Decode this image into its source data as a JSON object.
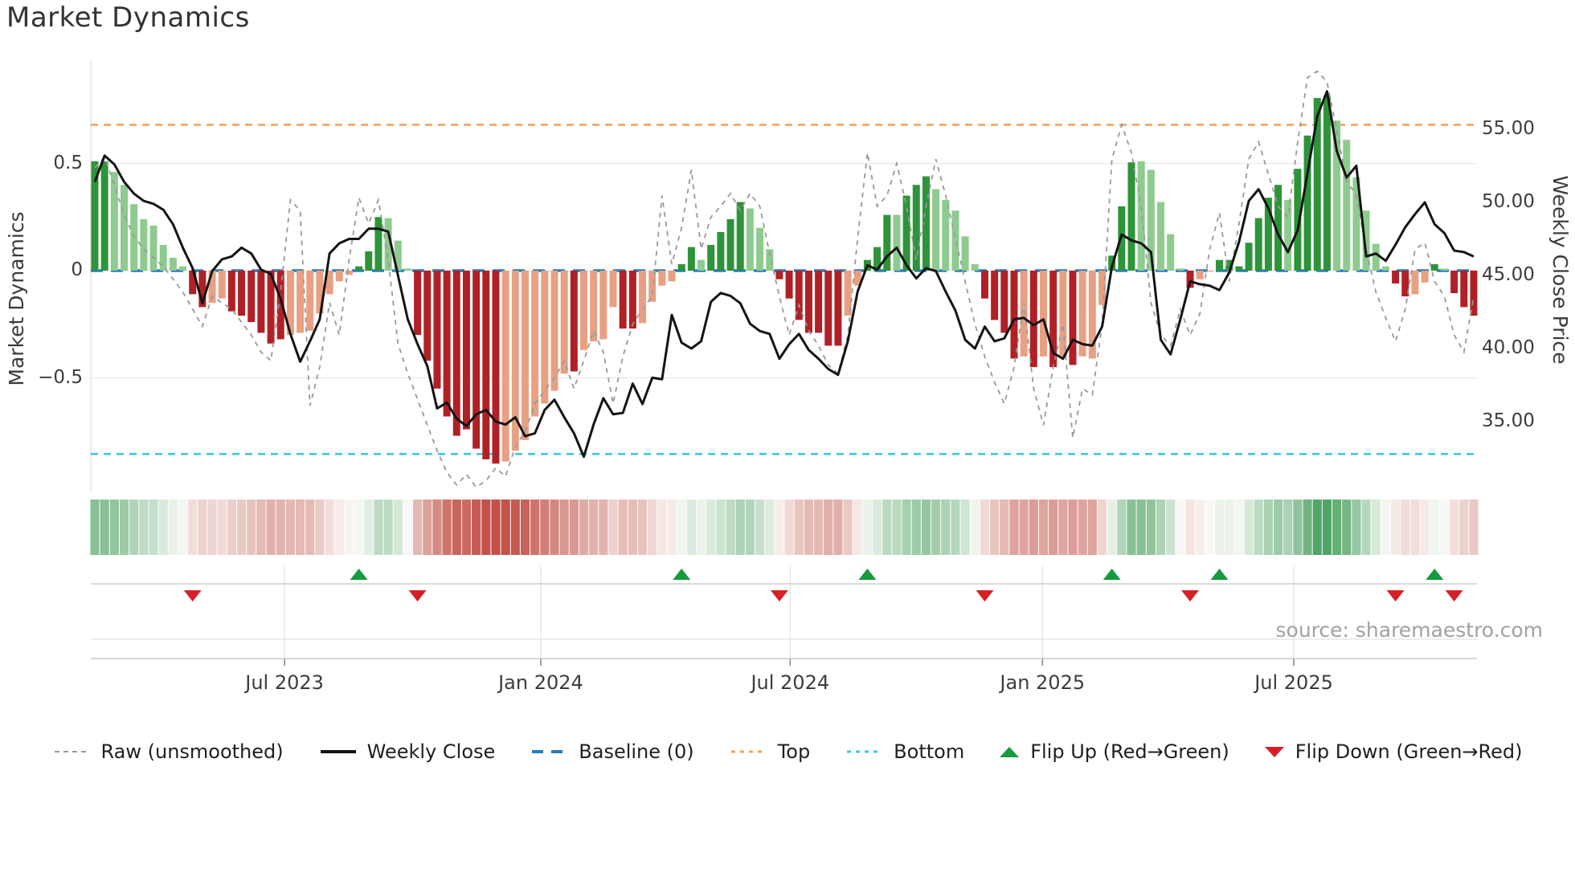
{
  "title": "Market Dynamics",
  "source": "source: sharemaestro.com",
  "axes": {
    "left_label": "Market Dynamics",
    "right_label": "Weekly Close Price",
    "left_ticks": [
      {
        "v": 0.5,
        "label": "0.5"
      },
      {
        "v": 0.0,
        "label": "0"
      },
      {
        "v": -0.5,
        "label": "−0.5"
      }
    ],
    "right_ticks": [
      {
        "p": 55,
        "label": "55.00"
      },
      {
        "p": 50,
        "label": "50.00"
      },
      {
        "p": 45,
        "label": "45.00"
      },
      {
        "p": 40,
        "label": "40.00"
      },
      {
        "p": 35,
        "label": "35.00"
      }
    ],
    "x_ticks": [
      {
        "week": 19.4,
        "label": "Jul 2023"
      },
      {
        "week": 45.6,
        "label": "Jan 2024"
      },
      {
        "week": 71.1,
        "label": "Jul 2024"
      },
      {
        "week": 96.9,
        "label": "Jan 2025"
      },
      {
        "week": 122.6,
        "label": "Jul 2025"
      }
    ]
  },
  "legend_items": [
    {
      "type": "dash-gray",
      "label": "Raw (unsmoothed)"
    },
    {
      "type": "solid-black",
      "label": "Weekly Close"
    },
    {
      "type": "dash-blue",
      "label": "Baseline (0)"
    },
    {
      "type": "dot-orange",
      "label": "Top"
    },
    {
      "type": "dot-cyan",
      "label": "Bottom"
    },
    {
      "type": "tri-up",
      "label": "Flip Up (Red→Green)"
    },
    {
      "type": "tri-down",
      "label": "Flip Down (Green→Red)"
    }
  ],
  "chart_data": {
    "type": "combo",
    "title": "Market Dynamics",
    "x_unit": "week",
    "weeks": 142,
    "left_ylim": [
      -1.03,
      0.98
    ],
    "right_ylim": [
      30.6,
      59.7
    ],
    "thresholds": {
      "baseline": 0,
      "top": 0.68,
      "bottom": -0.855
    },
    "grid": "horizontal-left-ticks-only",
    "legend_position": "bottom",
    "series": {
      "oscillator": [
        0.51,
        0.51,
        0.46,
        0.4,
        0.31,
        0.24,
        0.21,
        0.12,
        0.06,
        0.02,
        -0.11,
        -0.17,
        -0.15,
        -0.13,
        -0.19,
        -0.21,
        -0.24,
        -0.29,
        -0.34,
        -0.32,
        -0.3,
        -0.29,
        -0.28,
        -0.2,
        -0.11,
        -0.05,
        -0.02,
        0.02,
        0.09,
        0.25,
        0.245,
        0.14,
        0.01,
        -0.3,
        -0.42,
        -0.55,
        -0.68,
        -0.77,
        -0.74,
        -0.83,
        -0.88,
        -0.9,
        -0.89,
        -0.84,
        -0.79,
        -0.68,
        -0.62,
        -0.56,
        -0.48,
        -0.47,
        -0.37,
        -0.33,
        -0.32,
        -0.17,
        -0.27,
        -0.27,
        -0.245,
        -0.145,
        -0.07,
        -0.05,
        0.03,
        0.11,
        0.05,
        0.12,
        0.18,
        0.24,
        0.32,
        0.29,
        0.2,
        0.1,
        -0.04,
        -0.13,
        -0.23,
        -0.29,
        -0.29,
        -0.35,
        -0.35,
        -0.21,
        -0.07,
        0.05,
        0.11,
        0.26,
        0.26,
        0.35,
        0.4,
        0.44,
        0.38,
        0.33,
        0.28,
        0.16,
        0.03,
        -0.13,
        -0.23,
        -0.29,
        -0.41,
        -0.4,
        -0.45,
        -0.4,
        -0.45,
        -0.4,
        -0.44,
        -0.4,
        -0.41,
        -0.16,
        0.07,
        0.3,
        0.505,
        0.51,
        0.47,
        0.32,
        0.17,
        0.01,
        -0.08,
        -0.04,
        -0.005,
        0.05,
        0.05,
        0.02,
        0.13,
        0.245,
        0.34,
        0.4,
        0.33,
        0.475,
        0.63,
        0.805,
        0.815,
        0.7,
        0.61,
        0.435,
        0.28,
        0.125,
        0.02,
        -0.06,
        -0.12,
        -0.11,
        -0.055,
        0.03,
        0.01,
        -0.105,
        -0.17,
        -0.21
      ],
      "bar_colors": [
        "dg",
        "dg",
        "lg",
        "lg",
        "lg",
        "lg",
        "lg",
        "lg",
        "lg",
        "lg",
        "dr",
        "dr",
        "sa",
        "sa",
        "dr",
        "dr",
        "dr",
        "dr",
        "dr",
        "dr",
        "sa",
        "sa",
        "sa",
        "sa",
        "sa",
        "sa",
        "sa",
        "dg",
        "dg",
        "dg",
        "lg",
        "lg",
        "lg",
        "dr",
        "dr",
        "dr",
        "dr",
        "dr",
        "dr",
        "dr",
        "dr",
        "dr",
        "sa",
        "sa",
        "sa",
        "sa",
        "sa",
        "sa",
        "sa",
        "dr",
        "sa",
        "sa",
        "sa",
        "sa",
        "dr",
        "dr",
        "sa",
        "sa",
        "sa",
        "sa",
        "dg",
        "dg",
        "lg",
        "dg",
        "dg",
        "dg",
        "dg",
        "lg",
        "lg",
        "lg",
        "dr",
        "dr",
        "dr",
        "dr",
        "dr",
        "dr",
        "dr",
        "sa",
        "sa",
        "dg",
        "dg",
        "dg",
        "lg",
        "dg",
        "dg",
        "dg",
        "lg",
        "lg",
        "lg",
        "lg",
        "lg",
        "dr",
        "dr",
        "dr",
        "dr",
        "sa",
        "dr",
        "sa",
        "dr",
        "sa",
        "dr",
        "sa",
        "sa",
        "sa",
        "dg",
        "dg",
        "dg",
        "lg",
        "lg",
        "lg",
        "lg",
        "lg",
        "dr",
        "sa",
        "sa",
        "dg",
        "dg",
        "dg",
        "dg",
        "dg",
        "dg",
        "dg",
        "lg",
        "dg",
        "dg",
        "dg",
        "dg",
        "lg",
        "lg",
        "lg",
        "lg",
        "lg",
        "lg",
        "dr",
        "dr",
        "sa",
        "sa",
        "dg",
        "lg",
        "dr",
        "dr",
        "dr"
      ],
      "raw": [
        0.48,
        0.53,
        0.4,
        0.26,
        0.16,
        0.1,
        0.06,
        0.02,
        -0.04,
        -0.1,
        -0.18,
        -0.26,
        -0.12,
        -0.15,
        -0.18,
        -0.24,
        -0.3,
        -0.38,
        -0.42,
        -0.1,
        0.33,
        0.28,
        -0.63,
        -0.45,
        -0.15,
        -0.3,
        0.05,
        0.34,
        0.22,
        0.33,
        0.05,
        -0.34,
        -0.48,
        -0.6,
        -0.72,
        -0.84,
        -0.94,
        -1.0,
        -0.95,
        -1.01,
        -0.98,
        -0.92,
        -0.96,
        -0.82,
        -0.75,
        -0.62,
        -0.56,
        -0.5,
        -0.42,
        -0.55,
        -0.42,
        -0.28,
        -0.38,
        -0.62,
        -0.4,
        -0.25,
        -0.18,
        -0.12,
        0.35,
        0.03,
        0.2,
        0.47,
        0.1,
        0.25,
        0.3,
        0.36,
        0.28,
        0.36,
        0.3,
        0.08,
        -0.12,
        -0.3,
        -0.16,
        -0.28,
        -0.35,
        -0.44,
        -0.48,
        -0.3,
        0.15,
        0.55,
        0.3,
        0.35,
        0.5,
        0.3,
        0.05,
        0.3,
        0.52,
        0.35,
        0.15,
        -0.05,
        -0.25,
        -0.4,
        -0.52,
        -0.62,
        -0.45,
        -0.15,
        -0.55,
        -0.72,
        -0.45,
        -0.25,
        -0.78,
        -0.55,
        -0.58,
        -0.25,
        0.52,
        0.68,
        0.55,
        0.3,
        -0.15,
        -0.3,
        -0.35,
        -0.18,
        -0.3,
        -0.2,
        0.1,
        0.27,
        -0.05,
        0.22,
        0.52,
        0.6,
        0.45,
        0.3,
        0.25,
        0.6,
        0.9,
        0.93,
        0.88,
        0.65,
        0.42,
        0.35,
        0.1,
        -0.1,
        -0.22,
        -0.33,
        -0.18,
        0.1,
        0.13,
        -0.05,
        -0.12,
        -0.3,
        -0.38,
        -0.12
      ],
      "weekly_close": [
        51.4,
        53.2,
        52.6,
        51.4,
        50.6,
        50.1,
        49.9,
        49.5,
        48.5,
        46.9,
        45.5,
        43.1,
        45.3,
        46.1,
        46.3,
        46.9,
        46.5,
        45.4,
        45.1,
        43.4,
        41.0,
        39.1,
        40.5,
        42.0,
        46.5,
        47.2,
        47.5,
        47.5,
        48.2,
        48.2,
        48.0,
        45.0,
        42.0,
        40.3,
        38.8,
        35.9,
        36.3,
        35.2,
        34.7,
        35.5,
        35.8,
        35.0,
        34.8,
        35.3,
        34.0,
        34.2,
        35.8,
        36.5,
        35.3,
        34.2,
        32.6,
        34.8,
        36.6,
        35.5,
        35.6,
        37.6,
        36.2,
        38.0,
        37.9,
        42.3,
        40.4,
        40.0,
        40.5,
        43.2,
        43.8,
        43.6,
        43.1,
        41.7,
        41.2,
        41.0,
        39.3,
        40.3,
        41.0,
        39.9,
        39.3,
        38.6,
        38.2,
        40.5,
        43.9,
        45.7,
        45.4,
        46.3,
        46.9,
        45.7,
        44.8,
        45.5,
        45.3,
        43.9,
        42.6,
        40.6,
        40.0,
        41.5,
        40.5,
        40.7,
        42.0,
        42.1,
        41.6,
        42.0,
        39.7,
        39.3,
        40.6,
        40.3,
        40.2,
        41.5,
        45.6,
        47.8,
        47.4,
        47.2,
        46.6,
        40.6,
        39.6,
        42.0,
        44.6,
        44.4,
        44.3,
        44.0,
        45.2,
        47.3,
        50.1,
        50.9,
        49.6,
        47.8,
        46.6,
        48.1,
        52.0,
        55.9,
        57.6,
        53.5,
        51.7,
        52.5,
        46.3,
        46.5,
        46.0,
        47.1,
        48.3,
        49.2,
        50.0,
        48.5,
        47.9,
        46.7,
        46.6,
        46.3
      ]
    },
    "flip_up_weeks": [
      27,
      60,
      79,
      104,
      115,
      137
    ],
    "flip_down_weeks": [
      10,
      33,
      70,
      91,
      112,
      133,
      139
    ],
    "colors": {
      "dark_green": "#2d9439",
      "light_green": "#8ecb8e",
      "dark_red": "#b02126",
      "salmon": "#e8a082",
      "baseline_blue": "#2b7bba",
      "top_orange": "#f3a35f",
      "bottom_cyan": "#3fc7e3",
      "raw_gray": "#999999",
      "close_black": "#141414",
      "flip_up_green": "#169a3e",
      "flip_down_red": "#d62027",
      "heat_green": "#3f9d58",
      "heat_red": "#c25047",
      "heat_base": "#fbfaf8"
    }
  }
}
